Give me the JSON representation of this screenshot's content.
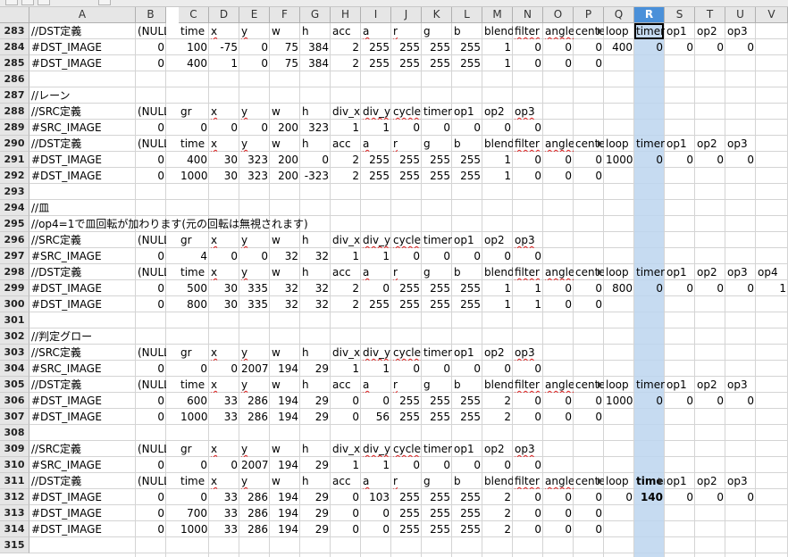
{
  "columns": [
    "A",
    "B",
    "C",
    "D",
    "E",
    "F",
    "G",
    "H",
    "I",
    "J",
    "K",
    "L",
    "M",
    "N",
    "O",
    "P",
    "Q",
    "R",
    "S",
    "T",
    "U",
    "V"
  ],
  "selected_column": "R",
  "active_cell": "R283",
  "colors": {
    "header_bg": "#e6e6e6",
    "selected_header": "#4a90d9",
    "selected_band": "#bcd5ee",
    "gridline": "#d4d4d4"
  },
  "rows": [
    {
      "n": "283",
      "cells": {
        "A": "//DST定義",
        "B": "(NULL)",
        "C": "time",
        "D": "x",
        "E": "y",
        "F": "w",
        "G": "h",
        "H": "acc",
        "I": "a",
        "J": "r",
        "K": "g",
        "L": "b",
        "M": "blend",
        "N": "filter",
        "O": "angle",
        "P": "center",
        "Q": "loop",
        "R": "timer",
        "S": "op1",
        "T": "op2",
        "U": "op3"
      }
    },
    {
      "n": "284",
      "cells": {
        "A": "#DST_IMAGE",
        "B": "0",
        "C": "100",
        "D": "-75",
        "E": "0",
        "F": "75",
        "G": "384",
        "H": "2",
        "I": "255",
        "J": "255",
        "K": "255",
        "L": "255",
        "M": "1",
        "N": "0",
        "O": "0",
        "P": "0",
        "Q": "400",
        "R": "0",
        "S": "0",
        "T": "0",
        "U": "0"
      }
    },
    {
      "n": "285",
      "cells": {
        "A": "#DST_IMAGE",
        "B": "0",
        "C": "400",
        "D": "1",
        "E": "0",
        "F": "75",
        "G": "384",
        "H": "2",
        "I": "255",
        "J": "255",
        "K": "255",
        "L": "255",
        "M": "1",
        "N": "0",
        "O": "0",
        "P": "0"
      }
    },
    {
      "n": "286",
      "cells": {}
    },
    {
      "n": "287",
      "cells": {
        "A": "//レーン"
      }
    },
    {
      "n": "288",
      "cells": {
        "A": "//SRC定義",
        "B": "(NULL)",
        "C": "gr",
        "D": "x",
        "E": "y",
        "F": "w",
        "G": "h",
        "H": "div_x",
        "I": "div_y",
        "J": "cycle",
        "K": "timer",
        "L": "op1",
        "M": "op2",
        "N": "op3"
      }
    },
    {
      "n": "289",
      "cells": {
        "A": "#SRC_IMAGE",
        "B": "0",
        "C": "0",
        "D": "0",
        "E": "0",
        "F": "200",
        "G": "323",
        "H": "1",
        "I": "1",
        "J": "0",
        "K": "0",
        "L": "0",
        "M": "0",
        "N": "0"
      }
    },
    {
      "n": "290",
      "cells": {
        "A": "//DST定義",
        "B": "(NULL)",
        "C": "time",
        "D": "x",
        "E": "y",
        "F": "w",
        "G": "h",
        "H": "acc",
        "I": "a",
        "J": "r",
        "K": "g",
        "L": "b",
        "M": "blend",
        "N": "filter",
        "O": "angle",
        "P": "center",
        "Q": "loop",
        "R": "timer",
        "S": "op1",
        "T": "op2",
        "U": "op3"
      }
    },
    {
      "n": "291",
      "cells": {
        "A": "#DST_IMAGE",
        "B": "0",
        "C": "400",
        "D": "30",
        "E": "323",
        "F": "200",
        "G": "0",
        "H": "2",
        "I": "255",
        "J": "255",
        "K": "255",
        "L": "255",
        "M": "1",
        "N": "0",
        "O": "0",
        "P": "0",
        "Q": "1000",
        "R": "0",
        "S": "0",
        "T": "0",
        "U": "0"
      }
    },
    {
      "n": "292",
      "cells": {
        "A": "#DST_IMAGE",
        "B": "0",
        "C": "1000",
        "D": "30",
        "E": "323",
        "F": "200",
        "G": "-323",
        "H": "2",
        "I": "255",
        "J": "255",
        "K": "255",
        "L": "255",
        "M": "1",
        "N": "0",
        "O": "0",
        "P": "0"
      }
    },
    {
      "n": "293",
      "cells": {}
    },
    {
      "n": "294",
      "cells": {
        "A": "//皿"
      }
    },
    {
      "n": "295",
      "cells": {
        "A": "//op4=1で皿回転が加わります(元の回転は無視されます)"
      }
    },
    {
      "n": "296",
      "cells": {
        "A": "//SRC定義",
        "B": "(NULL)",
        "C": "gr",
        "D": "x",
        "E": "y",
        "F": "w",
        "G": "h",
        "H": "div_x",
        "I": "div_y",
        "J": "cycle",
        "K": "timer",
        "L": "op1",
        "M": "op2",
        "N": "op3"
      }
    },
    {
      "n": "297",
      "cells": {
        "A": "#SRC_IMAGE",
        "B": "0",
        "C": "4",
        "D": "0",
        "E": "0",
        "F": "32",
        "G": "32",
        "H": "1",
        "I": "1",
        "J": "0",
        "K": "0",
        "L": "0",
        "M": "0",
        "N": "0"
      }
    },
    {
      "n": "298",
      "cells": {
        "A": "//DST定義",
        "B": "(NULL)",
        "C": "time",
        "D": "x",
        "E": "y",
        "F": "w",
        "G": "h",
        "H": "acc",
        "I": "a",
        "J": "r",
        "K": "g",
        "L": "b",
        "M": "blend",
        "N": "filter",
        "O": "angle",
        "P": "center",
        "Q": "loop",
        "R": "timer",
        "S": "op1",
        "T": "op2",
        "U": "op3",
        "V": "op4"
      }
    },
    {
      "n": "299",
      "cells": {
        "A": "#DST_IMAGE",
        "B": "0",
        "C": "500",
        "D": "30",
        "E": "335",
        "F": "32",
        "G": "32",
        "H": "2",
        "I": "0",
        "J": "255",
        "K": "255",
        "L": "255",
        "M": "1",
        "N": "1",
        "O": "0",
        "P": "0",
        "Q": "800",
        "R": "0",
        "S": "0",
        "T": "0",
        "U": "0",
        "V": "1"
      }
    },
    {
      "n": "300",
      "cells": {
        "A": "#DST_IMAGE",
        "B": "0",
        "C": "800",
        "D": "30",
        "E": "335",
        "F": "32",
        "G": "32",
        "H": "2",
        "I": "255",
        "J": "255",
        "K": "255",
        "L": "255",
        "M": "1",
        "N": "1",
        "O": "0",
        "P": "0"
      }
    },
    {
      "n": "301",
      "cells": {}
    },
    {
      "n": "302",
      "cells": {
        "A": "//判定グロー"
      }
    },
    {
      "n": "303",
      "cells": {
        "A": "//SRC定義",
        "B": "(NULL)",
        "C": "gr",
        "D": "x",
        "E": "y",
        "F": "w",
        "G": "h",
        "H": "div_x",
        "I": "div_y",
        "J": "cycle",
        "K": "timer",
        "L": "op1",
        "M": "op2",
        "N": "op3"
      }
    },
    {
      "n": "304",
      "cells": {
        "A": "#SRC_IMAGE",
        "B": "0",
        "C": "0",
        "D": "0",
        "E": "2007",
        "F": "194",
        "G": "29",
        "H": "1",
        "I": "1",
        "J": "0",
        "K": "0",
        "L": "0",
        "M": "0",
        "N": "0"
      }
    },
    {
      "n": "305",
      "cells": {
        "A": "//DST定義",
        "B": "(NULL)",
        "C": "time",
        "D": "x",
        "E": "y",
        "F": "w",
        "G": "h",
        "H": "acc",
        "I": "a",
        "J": "r",
        "K": "g",
        "L": "b",
        "M": "blend",
        "N": "filter",
        "O": "angle",
        "P": "center",
        "Q": "loop",
        "R": "timer",
        "S": "op1",
        "T": "op2",
        "U": "op3"
      }
    },
    {
      "n": "306",
      "cells": {
        "A": "#DST_IMAGE",
        "B": "0",
        "C": "600",
        "D": "33",
        "E": "286",
        "F": "194",
        "G": "29",
        "H": "0",
        "I": "0",
        "J": "255",
        "K": "255",
        "L": "255",
        "M": "2",
        "N": "0",
        "O": "0",
        "P": "0",
        "Q": "1000",
        "R": "0",
        "S": "0",
        "T": "0",
        "U": "0"
      }
    },
    {
      "n": "307",
      "cells": {
        "A": "#DST_IMAGE",
        "B": "0",
        "C": "1000",
        "D": "33",
        "E": "286",
        "F": "194",
        "G": "29",
        "H": "0",
        "I": "56",
        "J": "255",
        "K": "255",
        "L": "255",
        "M": "2",
        "N": "0",
        "O": "0",
        "P": "0"
      }
    },
    {
      "n": "308",
      "cells": {}
    },
    {
      "n": "309",
      "cells": {
        "A": "//SRC定義",
        "B": "(NULL)",
        "C": "gr",
        "D": "x",
        "E": "y",
        "F": "w",
        "G": "h",
        "H": "div_x",
        "I": "div_y",
        "J": "cycle",
        "K": "timer",
        "L": "op1",
        "M": "op2",
        "N": "op3"
      }
    },
    {
      "n": "310",
      "cells": {
        "A": "#SRC_IMAGE",
        "B": "0",
        "C": "0",
        "D": "0",
        "E": "2007",
        "F": "194",
        "G": "29",
        "H": "1",
        "I": "1",
        "J": "0",
        "K": "0",
        "L": "0",
        "M": "0",
        "N": "0"
      }
    },
    {
      "n": "311",
      "cells": {
        "A": "//DST定義",
        "B": "(NULL)",
        "C": "time",
        "D": "x",
        "E": "y",
        "F": "w",
        "G": "h",
        "H": "acc",
        "I": "a",
        "J": "r",
        "K": "g",
        "L": "b",
        "M": "blend",
        "N": "filter",
        "O": "angle",
        "P": "center",
        "Q": "loop",
        "R": "timer",
        "S": "op1",
        "T": "op2",
        "U": "op3"
      }
    },
    {
      "n": "312",
      "cells": {
        "A": "#DST_IMAGE",
        "B": "0",
        "C": "0",
        "D": "33",
        "E": "286",
        "F": "194",
        "G": "29",
        "H": "0",
        "I": "103",
        "J": "255",
        "K": "255",
        "L": "255",
        "M": "2",
        "N": "0",
        "O": "0",
        "P": "0",
        "Q": "0",
        "R": "140",
        "S": "0",
        "T": "0",
        "U": "0"
      }
    },
    {
      "n": "313",
      "cells": {
        "A": "#DST_IMAGE",
        "B": "0",
        "C": "700",
        "D": "33",
        "E": "286",
        "F": "194",
        "G": "29",
        "H": "0",
        "I": "0",
        "J": "255",
        "K": "255",
        "L": "255",
        "M": "2",
        "N": "0",
        "O": "0",
        "P": "0"
      }
    },
    {
      "n": "314",
      "cells": {
        "A": "#DST_IMAGE",
        "B": "0",
        "C": "1000",
        "D": "33",
        "E": "286",
        "F": "194",
        "G": "29",
        "H": "0",
        "I": "0",
        "J": "255",
        "K": "255",
        "L": "255",
        "M": "2",
        "N": "0",
        "O": "0",
        "P": "0"
      }
    },
    {
      "n": "315",
      "cells": {}
    }
  ]
}
